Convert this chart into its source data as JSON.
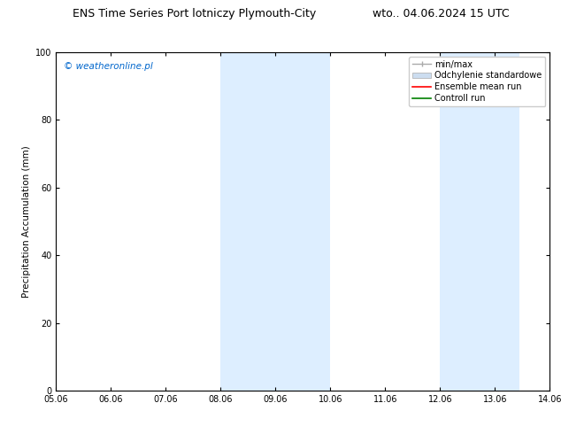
{
  "title_left": "ENS Time Series Port lotniczy Plymouth-City",
  "title_right": "wto.. 04.06.2024 15 UTC",
  "ylabel": "Precipitation Accumulation (mm)",
  "watermark": "© weatheronline.pl",
  "watermark_color": "#0066cc",
  "ylim": [
    0,
    100
  ],
  "yticks": [
    0,
    20,
    40,
    60,
    80,
    100
  ],
  "x_start": 5.06,
  "x_end": 14.06,
  "xtick_labels": [
    "05.06",
    "06.06",
    "07.06",
    "08.06",
    "09.06",
    "10.06",
    "11.06",
    "12.06",
    "13.06",
    "14.06"
  ],
  "xtick_positions": [
    5.06,
    6.06,
    7.06,
    8.06,
    9.06,
    10.06,
    11.06,
    12.06,
    13.06,
    14.06
  ],
  "shaded_regions": [
    {
      "x_start": 8.06,
      "x_end": 10.06
    },
    {
      "x_start": 12.06,
      "x_end": 13.5
    }
  ],
  "shaded_color": "#ddeeff",
  "legend_entries": [
    {
      "label": "min/max",
      "color": "#aaaaaa",
      "style": "minmax"
    },
    {
      "label": "Odchylenie standardowe",
      "color": "#ccddee",
      "style": "stddev"
    },
    {
      "label": "Ensemble mean run",
      "color": "red",
      "style": "line"
    },
    {
      "label": "Controll run",
      "color": "green",
      "style": "line"
    }
  ],
  "background_color": "#ffffff",
  "title_fontsize": 9,
  "axis_fontsize": 7.5,
  "tick_fontsize": 7,
  "legend_fontsize": 7,
  "watermark_fontsize": 7.5
}
